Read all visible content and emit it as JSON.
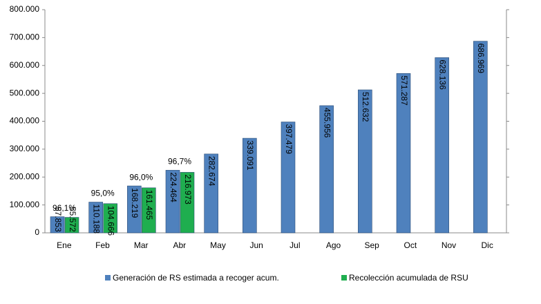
{
  "chart_data": {
    "type": "bar",
    "categories": [
      "Ene",
      "Feb",
      "Mar",
      "Abr",
      "May",
      "Jun",
      "Jul",
      "Ago",
      "Sep",
      "Oct",
      "Nov",
      "Dic"
    ],
    "series": [
      {
        "name": "Generación de RS estimada a recoger acum.",
        "color": "#4f81bd",
        "values": [
          57853,
          110188,
          168219,
          224464,
          282674,
          339091,
          397479,
          455956,
          512632,
          571287,
          628136,
          686969
        ],
        "value_labels": [
          "57.853",
          "110.188",
          "168.219",
          "224.464",
          "282.674",
          "339.091",
          "397.479",
          "455.956",
          "512.632",
          "571.287",
          "628.136",
          "686.969"
        ]
      },
      {
        "name": "Recolección acumulada de RSU",
        "color": "#1fae4f",
        "values": [
          55572,
          104666,
          161465,
          216973,
          null,
          null,
          null,
          null,
          null,
          null,
          null,
          null
        ],
        "value_labels": [
          "55.572",
          "104.666",
          "161.465",
          "216.973",
          null,
          null,
          null,
          null,
          null,
          null,
          null,
          null
        ]
      }
    ],
    "ratio_labels": [
      "96,1%",
      "95,0%",
      "96,0%",
      "96,7%",
      null,
      null,
      null,
      null,
      null,
      null,
      null,
      null
    ],
    "ylim": [
      0,
      800000
    ],
    "yticks": [
      0,
      {
        "value": 100000,
        "label": "100.000"
      },
      {
        "value": 200000,
        "label": "200.000"
      },
      {
        "value": 300000,
        "label": "300.000"
      },
      {
        "value": 400000,
        "label": "400.000"
      },
      {
        "value": 500000,
        "label": "500.000"
      },
      {
        "value": 600000,
        "label": "600.000"
      },
      {
        "value": 700000,
        "label": "700.000"
      },
      {
        "value": 800000,
        "label": "800.000"
      }
    ],
    "legend": "bottom"
  }
}
